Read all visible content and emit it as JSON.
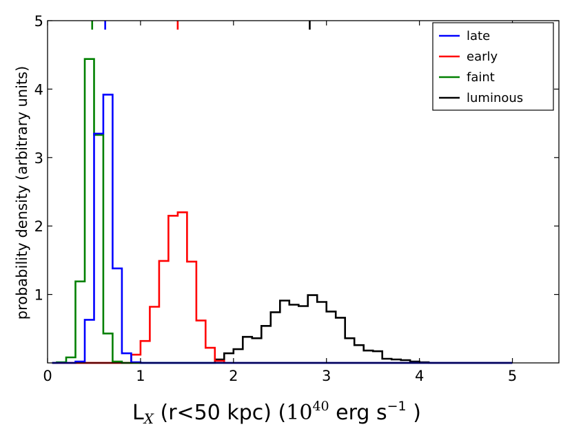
{
  "chart_data": {
    "type": "line",
    "style": "step-histogram",
    "title": "",
    "xlabel": {
      "main": "L",
      "sub": "X",
      "rest": " (r<50 kpc) (",
      "power_base": "10",
      "power_exp": "40",
      "unit": " erg s",
      "unit_exp": "−1",
      "close": " )"
    },
    "ylabel": "probability density (arbitrary units)",
    "xlim": [
      0,
      5.5
    ],
    "ylim": [
      0,
      5
    ],
    "xticks": [
      "0",
      "1",
      "2",
      "3",
      "4",
      "5"
    ],
    "yticks": [
      "1",
      "2",
      "3",
      "4",
      "5"
    ],
    "xtick_values": [
      0,
      1,
      2,
      3,
      4,
      5
    ],
    "ytick_values": [
      1,
      2,
      3,
      4,
      5
    ],
    "legend_position": "top-right",
    "series": [
      {
        "name": "late",
        "color": "#0000ff",
        "marker": 0.62,
        "edges": [
          0.3,
          0.4,
          0.5,
          0.6,
          0.7,
          0.8,
          0.9,
          1.0
        ],
        "values": [
          0.02,
          0.63,
          3.35,
          3.92,
          1.38,
          0.14,
          0.01
        ]
      },
      {
        "name": "early",
        "color": "#ff0000",
        "marker": 1.4,
        "edges": [
          0.9,
          1.0,
          1.1,
          1.2,
          1.3,
          1.4,
          1.5,
          1.6,
          1.7,
          1.8,
          1.9
        ],
        "values": [
          0.12,
          0.32,
          0.82,
          1.49,
          2.15,
          2.2,
          1.48,
          0.62,
          0.22,
          0.03
        ]
      },
      {
        "name": "faint",
        "color": "#008000",
        "marker": 0.48,
        "edges": [
          0.1,
          0.2,
          0.3,
          0.4,
          0.5,
          0.6,
          0.7,
          0.8
        ],
        "values": [
          0.01,
          0.08,
          1.19,
          4.44,
          3.33,
          0.43,
          0.02
        ]
      },
      {
        "name": "luminous",
        "color": "#000000",
        "marker": 2.82,
        "edges": [
          1.8,
          1.9,
          2.0,
          2.1,
          2.2,
          2.3,
          2.4,
          2.5,
          2.6,
          2.7,
          2.8,
          2.9,
          3.0,
          3.1,
          3.2,
          3.3,
          3.4,
          3.5,
          3.6,
          3.7,
          3.8,
          3.9,
          4.0,
          4.1
        ],
        "values": [
          0.05,
          0.14,
          0.2,
          0.38,
          0.36,
          0.54,
          0.74,
          0.91,
          0.85,
          0.83,
          0.99,
          0.89,
          0.75,
          0.66,
          0.36,
          0.26,
          0.18,
          0.17,
          0.06,
          0.05,
          0.04,
          0.02,
          0.01
        ]
      }
    ]
  }
}
